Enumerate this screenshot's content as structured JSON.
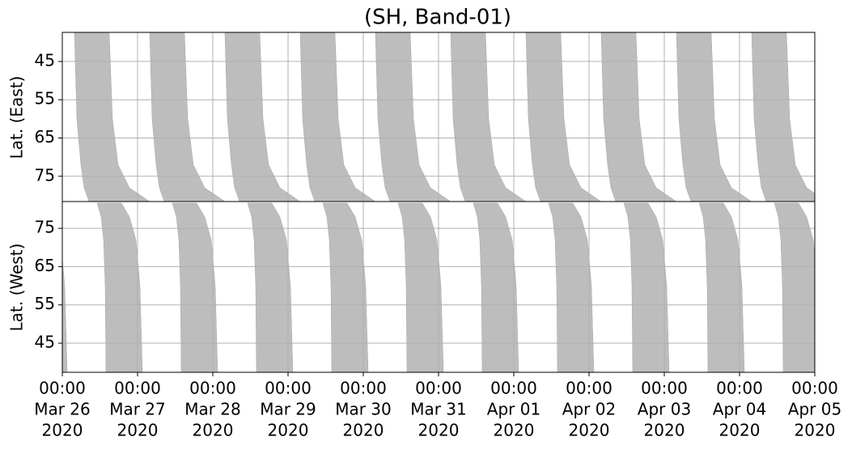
{
  "chart_data": [
    {
      "type": "swath",
      "title": "(SH, Band-01)",
      "ylabel": "Lat. (East)",
      "inverted": true,
      "grid": true,
      "color": "#bdbdbd",
      "xlim": [
        "2020-03-26T00:00",
        "2020-04-05T00:00"
      ],
      "ylim": [
        37.4,
        81.6
      ],
      "yticks": [
        45,
        55,
        65,
        75
      ],
      "lats": [
        37.4,
        60,
        72,
        78,
        81.6
      ],
      "swaths": [
        {
          "start": [
            "2020-03-26T03:52",
            "2020-03-26T04:39",
            "2020-03-26T05:56",
            "2020-03-26T06:58",
            "2020-03-26T08:31"
          ],
          "end": [
            "2020-03-26T14:58",
            "2020-03-26T16:00",
            "2020-03-26T17:48",
            "2020-03-26T21:25",
            "2020-03-27T03:52"
          ]
        },
        {
          "start": [
            "2020-03-27T03:52",
            "2020-03-27T04:39",
            "2020-03-27T05:56",
            "2020-03-27T06:58",
            "2020-03-27T08:31"
          ],
          "end": [
            "2020-03-27T14:58",
            "2020-03-27T16:00",
            "2020-03-27T17:48",
            "2020-03-27T21:25",
            "2020-03-28T03:52"
          ]
        },
        {
          "start": [
            "2020-03-28T03:52",
            "2020-03-28T04:39",
            "2020-03-28T05:56",
            "2020-03-28T06:58",
            "2020-03-28T08:31"
          ],
          "end": [
            "2020-03-28T14:58",
            "2020-03-28T16:00",
            "2020-03-28T17:48",
            "2020-03-28T21:25",
            "2020-03-29T03:52"
          ]
        },
        {
          "start": [
            "2020-03-29T03:52",
            "2020-03-29T04:39",
            "2020-03-29T05:56",
            "2020-03-29T06:58",
            "2020-03-29T08:31"
          ],
          "end": [
            "2020-03-29T14:58",
            "2020-03-29T16:00",
            "2020-03-29T17:48",
            "2020-03-29T21:25",
            "2020-03-30T03:52"
          ]
        },
        {
          "start": [
            "2020-03-30T03:52",
            "2020-03-30T04:39",
            "2020-03-30T05:56",
            "2020-03-30T06:58",
            "2020-03-30T08:31"
          ],
          "end": [
            "2020-03-30T14:58",
            "2020-03-30T16:00",
            "2020-03-30T17:48",
            "2020-03-30T21:25",
            "2020-03-31T03:52"
          ]
        },
        {
          "start": [
            "2020-03-31T03:52",
            "2020-03-31T04:39",
            "2020-03-31T05:56",
            "2020-03-31T06:58",
            "2020-03-31T08:31"
          ],
          "end": [
            "2020-03-31T14:58",
            "2020-03-31T16:00",
            "2020-03-31T17:48",
            "2020-03-31T21:25",
            "2020-04-01T03:52"
          ]
        },
        {
          "start": [
            "2020-04-01T03:52",
            "2020-04-01T04:39",
            "2020-04-01T05:56",
            "2020-04-01T06:58",
            "2020-04-01T08:31"
          ],
          "end": [
            "2020-04-01T14:58",
            "2020-04-01T16:00",
            "2020-04-01T17:48",
            "2020-04-01T21:25",
            "2020-04-02T03:52"
          ]
        },
        {
          "start": [
            "2020-04-02T03:52",
            "2020-04-02T04:39",
            "2020-04-02T05:56",
            "2020-04-02T06:58",
            "2020-04-02T08:31"
          ],
          "end": [
            "2020-04-02T14:58",
            "2020-04-02T16:00",
            "2020-04-02T17:48",
            "2020-04-02T21:25",
            "2020-04-03T03:52"
          ]
        },
        {
          "start": [
            "2020-04-03T03:52",
            "2020-04-03T04:39",
            "2020-04-03T05:56",
            "2020-04-03T06:58",
            "2020-04-03T08:31"
          ],
          "end": [
            "2020-04-03T14:58",
            "2020-04-03T16:00",
            "2020-04-03T17:48",
            "2020-04-03T21:25",
            "2020-04-04T03:52"
          ]
        },
        {
          "start": [
            "2020-04-04T03:52",
            "2020-04-04T04:39",
            "2020-04-04T05:56",
            "2020-04-04T06:58",
            "2020-04-04T08:31"
          ],
          "end": [
            "2020-04-04T14:58",
            "2020-04-04T16:00",
            "2020-04-04T17:48",
            "2020-04-04T21:25",
            "2020-04-05T03:52"
          ]
        }
      ]
    },
    {
      "type": "swath",
      "ylabel": "Lat. (West)",
      "inverted": false,
      "grid": true,
      "color": "#bdbdbd",
      "xlim": [
        "2020-03-26T00:00",
        "2020-04-05T00:00"
      ],
      "ylim": [
        37.4,
        82
      ],
      "yticks": [
        45,
        55,
        65,
        75
      ],
      "xticks": [
        {
          "value": "2020-03-26T00:00",
          "label": [
            "00:00",
            "Mar 26",
            "2020"
          ]
        },
        {
          "value": "2020-03-27T00:00",
          "label": [
            "00:00",
            "Mar 27",
            "2020"
          ]
        },
        {
          "value": "2020-03-28T00:00",
          "label": [
            "00:00",
            "Mar 28",
            "2020"
          ]
        },
        {
          "value": "2020-03-29T00:00",
          "label": [
            "00:00",
            "Mar 29",
            "2020"
          ]
        },
        {
          "value": "2020-03-30T00:00",
          "label": [
            "00:00",
            "Mar 30",
            "2020"
          ]
        },
        {
          "value": "2020-03-31T00:00",
          "label": [
            "00:00",
            "Mar 31",
            "2020"
          ]
        },
        {
          "value": "2020-04-01T00:00",
          "label": [
            "00:00",
            "Apr 01",
            "2020"
          ]
        },
        {
          "value": "2020-04-02T00:00",
          "label": [
            "00:00",
            "Apr 02",
            "2020"
          ]
        },
        {
          "value": "2020-04-03T00:00",
          "label": [
            "00:00",
            "Apr 03",
            "2020"
          ]
        },
        {
          "value": "2020-04-04T00:00",
          "label": [
            "00:00",
            "Apr 04",
            "2020"
          ]
        },
        {
          "value": "2020-04-05T00:00",
          "label": [
            "00:00",
            "Apr 05",
            "2020"
          ]
        }
      ],
      "lats": [
        81.6,
        78,
        72,
        60,
        37.4
      ],
      "swaths": [
        {
          "start": [
            "2020-03-25T11:06",
            "2020-03-25T12:23",
            "2020-03-25T13:10",
            "2020-03-25T13:41",
            "2020-03-25T13:56"
          ],
          "end": [
            "2020-03-25T18:50",
            "2020-03-25T21:25",
            "2020-03-25T23:29",
            "2020-03-26T00:46",
            "2020-03-26T01:33"
          ]
        },
        {
          "start": [
            "2020-03-26T11:06",
            "2020-03-26T12:23",
            "2020-03-26T13:10",
            "2020-03-26T13:41",
            "2020-03-26T13:56"
          ],
          "end": [
            "2020-03-26T18:50",
            "2020-03-26T21:25",
            "2020-03-26T23:29",
            "2020-03-27T00:46",
            "2020-03-27T01:33"
          ]
        },
        {
          "start": [
            "2020-03-27T11:06",
            "2020-03-27T12:23",
            "2020-03-27T13:10",
            "2020-03-27T13:41",
            "2020-03-27T13:56"
          ],
          "end": [
            "2020-03-27T18:50",
            "2020-03-27T21:25",
            "2020-03-27T23:29",
            "2020-03-28T00:46",
            "2020-03-28T01:33"
          ]
        },
        {
          "start": [
            "2020-03-28T11:06",
            "2020-03-28T12:23",
            "2020-03-28T13:10",
            "2020-03-28T13:41",
            "2020-03-28T13:56"
          ],
          "end": [
            "2020-03-28T18:50",
            "2020-03-28T21:25",
            "2020-03-28T23:29",
            "2020-03-29T00:46",
            "2020-03-29T01:33"
          ]
        },
        {
          "start": [
            "2020-03-29T11:06",
            "2020-03-29T12:23",
            "2020-03-29T13:10",
            "2020-03-29T13:41",
            "2020-03-29T13:56"
          ],
          "end": [
            "2020-03-29T18:50",
            "2020-03-29T21:25",
            "2020-03-29T23:29",
            "2020-03-30T00:46",
            "2020-03-30T01:33"
          ]
        },
        {
          "start": [
            "2020-03-30T11:06",
            "2020-03-30T12:23",
            "2020-03-30T13:10",
            "2020-03-30T13:41",
            "2020-03-30T13:56"
          ],
          "end": [
            "2020-03-30T18:50",
            "2020-03-30T21:25",
            "2020-03-30T23:29",
            "2020-03-31T00:46",
            "2020-03-31T01:33"
          ]
        },
        {
          "start": [
            "2020-03-31T11:06",
            "2020-03-31T12:23",
            "2020-03-31T13:10",
            "2020-03-31T13:41",
            "2020-03-31T13:56"
          ],
          "end": [
            "2020-03-31T18:50",
            "2020-03-31T21:25",
            "2020-03-31T23:29",
            "2020-04-01T00:46",
            "2020-04-01T01:33"
          ]
        },
        {
          "start": [
            "2020-04-01T11:06",
            "2020-04-01T12:23",
            "2020-04-01T13:10",
            "2020-04-01T13:41",
            "2020-04-01T13:56"
          ],
          "end": [
            "2020-04-01T18:50",
            "2020-04-01T21:25",
            "2020-04-01T23:29",
            "2020-04-02T00:46",
            "2020-04-02T01:33"
          ]
        },
        {
          "start": [
            "2020-04-02T11:06",
            "2020-04-02T12:23",
            "2020-04-02T13:10",
            "2020-04-02T13:41",
            "2020-04-02T13:56"
          ],
          "end": [
            "2020-04-02T18:50",
            "2020-04-02T21:25",
            "2020-04-02T23:29",
            "2020-04-03T00:46",
            "2020-04-03T01:33"
          ]
        },
        {
          "start": [
            "2020-04-03T11:06",
            "2020-04-03T12:23",
            "2020-04-03T13:10",
            "2020-04-03T13:41",
            "2020-04-03T13:56"
          ],
          "end": [
            "2020-04-03T18:50",
            "2020-04-03T21:25",
            "2020-04-03T23:29",
            "2020-04-04T00:46",
            "2020-04-04T01:33"
          ]
        },
        {
          "start": [
            "2020-04-04T11:06",
            "2020-04-04T12:23",
            "2020-04-04T13:10",
            "2020-04-04T13:41",
            "2020-04-04T13:56"
          ],
          "end": [
            "2020-04-04T18:50",
            "2020-04-04T21:25",
            "2020-04-04T23:29",
            "2020-04-05T00:46",
            "2020-04-05T01:33"
          ]
        }
      ]
    }
  ]
}
